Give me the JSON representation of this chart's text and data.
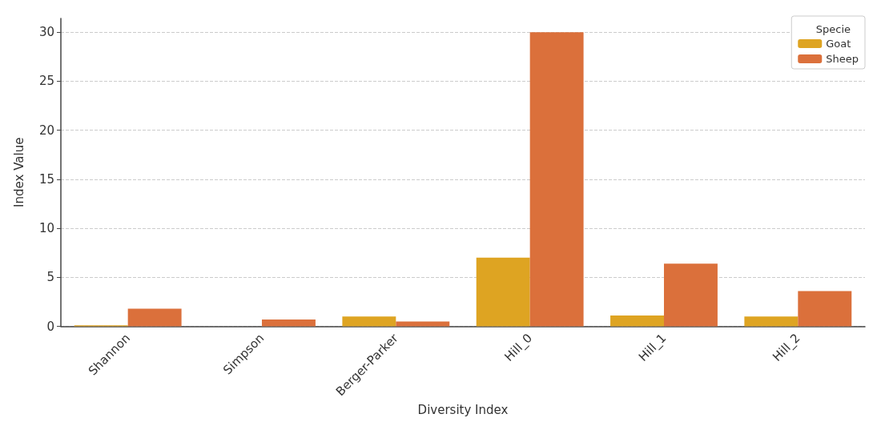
{
  "chart_data": {
    "type": "bar",
    "xlabel": "Diversity Index",
    "ylabel": "Index Value",
    "legend_title": "Specie",
    "categories": [
      "Shannon",
      "Simpson",
      "Berger-Parker",
      "Hill_0",
      "Hill_1",
      "Hill_2"
    ],
    "series": [
      {
        "name": "Goat",
        "color": "#dea422",
        "values": [
          0.1,
          null,
          1,
          7,
          1.1,
          1
        ]
      },
      {
        "name": "Sheep",
        "color": "#db703b",
        "values": [
          1.8,
          0.7,
          0.5,
          30,
          6.4,
          3.6
        ]
      }
    ],
    "ylim": [
      0,
      31.4
    ],
    "yticks": [
      0,
      5,
      10,
      15,
      20,
      25,
      30
    ],
    "grid": "y",
    "legend": "top right"
  }
}
